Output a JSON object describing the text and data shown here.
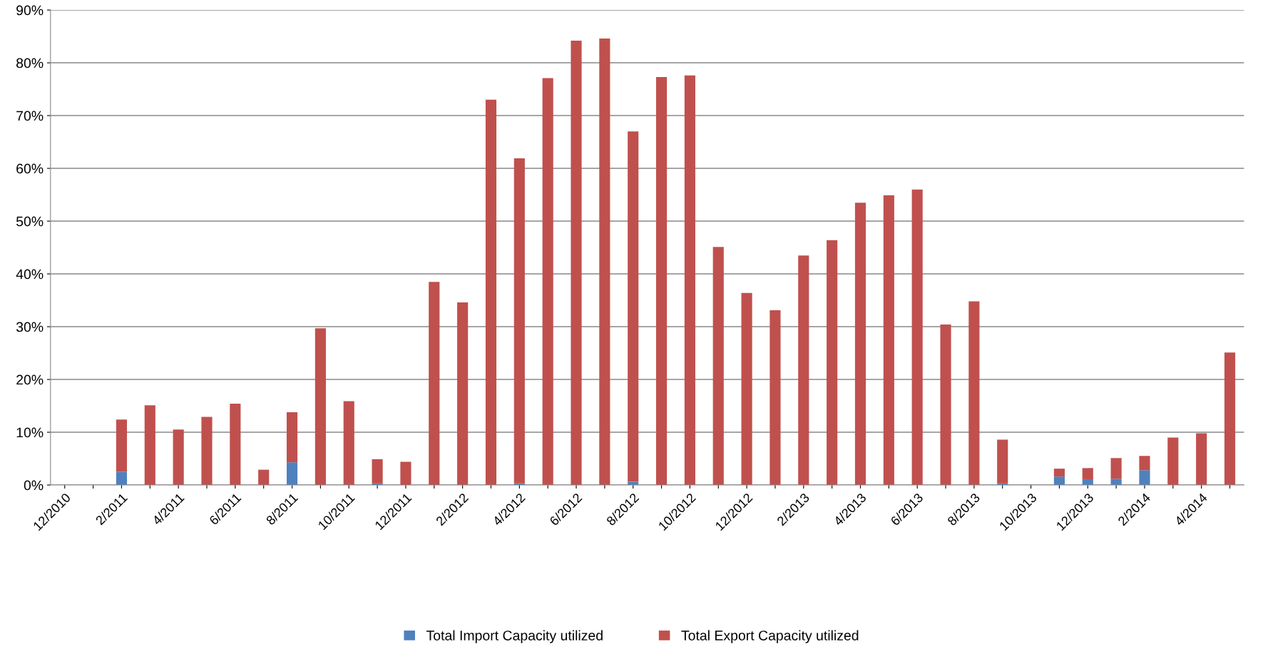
{
  "chart_data": {
    "type": "bar",
    "stacked": true,
    "categories": [
      "12/2010",
      null,
      "2/2011",
      null,
      "4/2011",
      null,
      "6/2011",
      null,
      "8/2011",
      null,
      "10/2011",
      null,
      "12/2011",
      null,
      "2/2012",
      null,
      "4/2012",
      null,
      "6/2012",
      null,
      "8/2012",
      null,
      "10/2012",
      null,
      "12/2012",
      null,
      "2/2013",
      null,
      "4/2013",
      null,
      "6/2013",
      null,
      "8/2013",
      null,
      "10/2013",
      null,
      "12/2013",
      null,
      "2/2014",
      null,
      "4/2014",
      null
    ],
    "series": [
      {
        "name": "Total Import Capacity utilized",
        "color": "#4f81bd",
        "values": [
          0,
          0,
          2.5,
          0,
          0,
          0,
          0,
          0,
          4.3,
          0,
          0,
          0.3,
          0,
          0,
          0,
          0,
          0.3,
          0,
          0,
          0,
          0.6,
          0,
          0,
          0,
          0,
          0,
          0,
          0,
          0,
          0,
          0,
          0,
          0,
          0.3,
          0,
          1.6,
          1.1,
          1.2,
          2.8,
          0,
          0,
          0
        ]
      },
      {
        "name": "Total Export Capacity utilized",
        "color": "#c0504d",
        "values": [
          0,
          0,
          9.9,
          15.1,
          10.5,
          12.9,
          15.4,
          2.9,
          9.5,
          29.7,
          15.9,
          4.6,
          4.4,
          38.5,
          34.6,
          73.0,
          61.6,
          77.1,
          84.2,
          84.6,
          66.4,
          77.3,
          77.6,
          45.1,
          36.4,
          33.1,
          43.5,
          46.4,
          53.5,
          54.9,
          56.0,
          30.4,
          34.8,
          8.3,
          0,
          1.5,
          2.1,
          3.9,
          2.7,
          9.0,
          9.8,
          25.1
        ]
      }
    ],
    "ylim": [
      0,
      90
    ],
    "yticks": [
      {
        "value": 0,
        "label": "0%"
      },
      {
        "value": 10,
        "label": "10%"
      },
      {
        "value": 20,
        "label": "20%"
      },
      {
        "value": 30,
        "label": "30%"
      },
      {
        "value": 40,
        "label": "40%"
      },
      {
        "value": 50,
        "label": "50%"
      },
      {
        "value": 60,
        "label": "60%"
      },
      {
        "value": 70,
        "label": "70%"
      },
      {
        "value": 80,
        "label": "80%"
      },
      {
        "value": 90,
        "label": "90%"
      }
    ],
    "grid": "y",
    "legend": "bottom"
  }
}
